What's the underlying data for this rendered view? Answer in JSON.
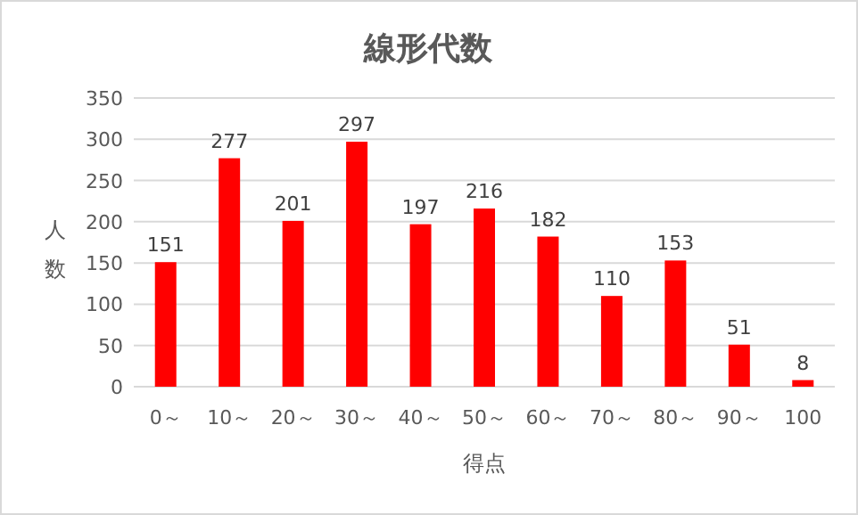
{
  "chart_data": {
    "type": "bar",
    "title": "線形代数",
    "xlabel": "得点",
    "ylabel": "人数",
    "categories": [
      "0～",
      "10～",
      "20～",
      "30～",
      "40～",
      "50～",
      "60～",
      "70～",
      "80～",
      "90～",
      "100"
    ],
    "values": [
      151,
      277,
      201,
      297,
      197,
      216,
      182,
      110,
      153,
      51,
      8
    ],
    "color": "#ff0000",
    "ylim": [
      0,
      350
    ],
    "yticks": [
      0,
      50,
      100,
      150,
      200,
      250,
      300,
      350
    ],
    "grid": "y",
    "data_labels": true
  }
}
